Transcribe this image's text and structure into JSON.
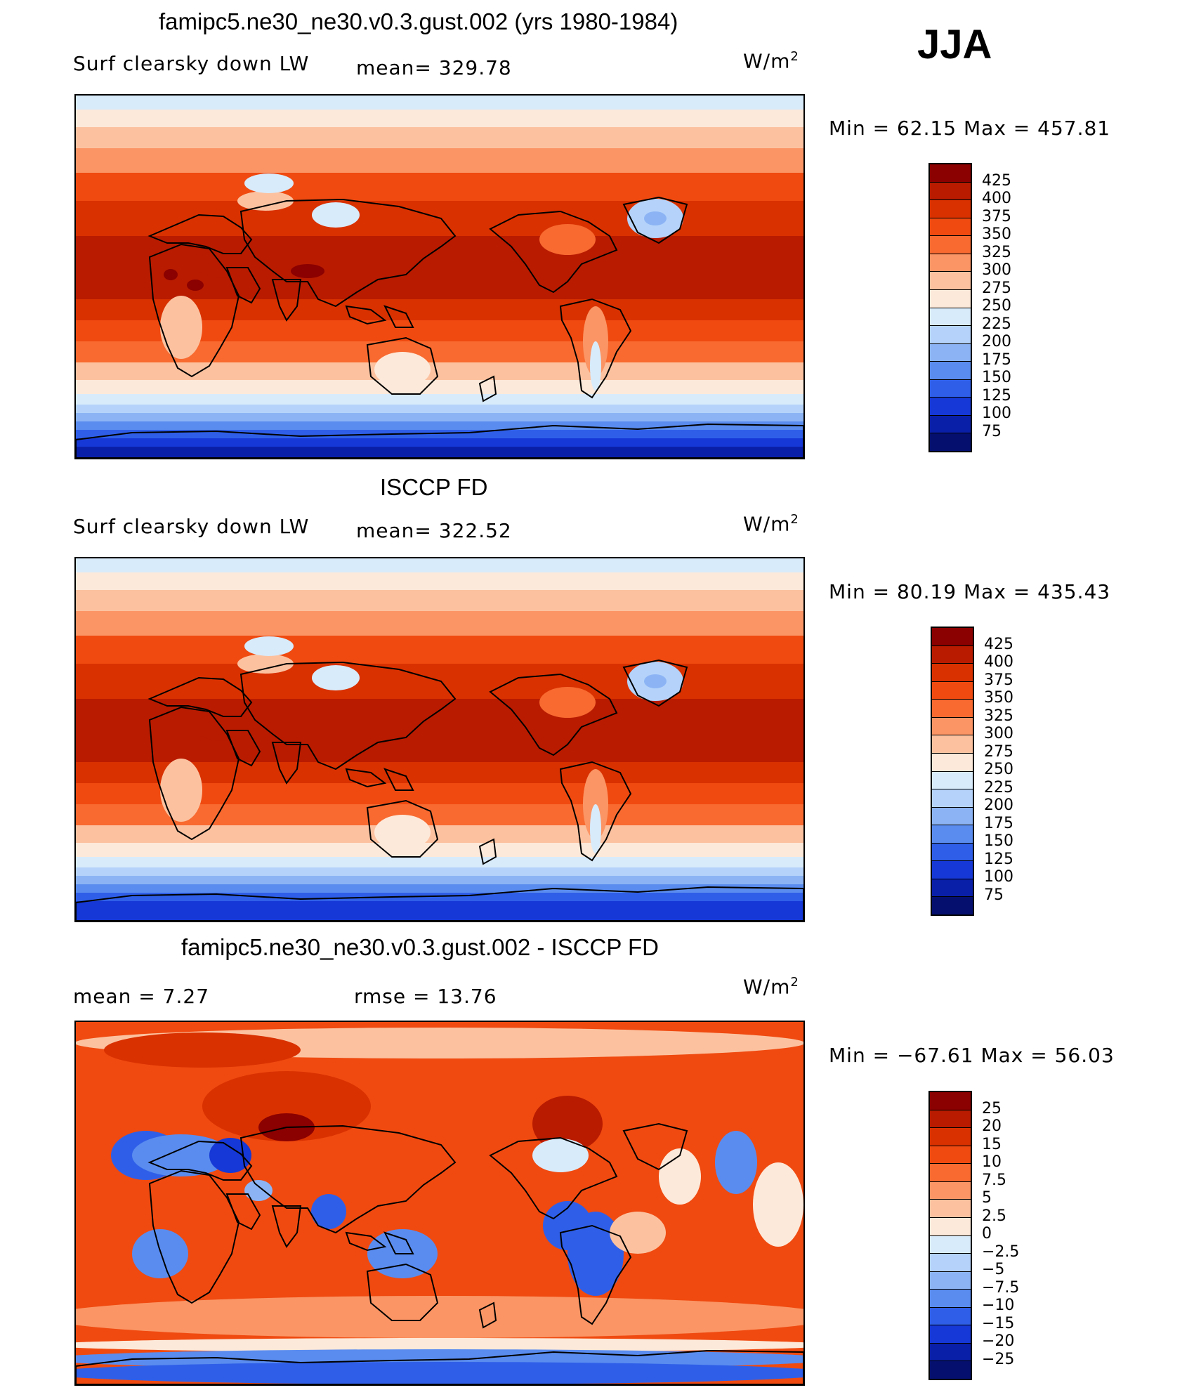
{
  "header": {
    "title": "famipc5.ne30_ne30.v0.3.gust.002 (yrs 1980-1984)",
    "season": "JJA"
  },
  "panels": [
    {
      "id": "model",
      "title": "",
      "left_label": "Surf clearsky down LW",
      "center_label": "mean= 329.78",
      "units": "W/m",
      "units_sup": "2",
      "minmax": "Min =   62.15 Max = 457.81",
      "legend_levels": [
        "425",
        "400",
        "375",
        "350",
        "325",
        "300",
        "275",
        "250",
        "225",
        "200",
        "175",
        "150",
        "125",
        "100",
        "75"
      ],
      "legend_colors": [
        "#8b0000",
        "#b81b00",
        "#d93100",
        "#f04a10",
        "#f86a30",
        "#fb9565",
        "#fcc2a0",
        "#fde9d9",
        "#d8ebfb",
        "#b5d3fa",
        "#8cb4f5",
        "#5a8cef",
        "#2f5fe8",
        "#1538d6",
        "#0a1fa8",
        "#05106e"
      ],
      "palette": "seq"
    },
    {
      "id": "obs",
      "title": "ISCCP FD",
      "left_label": "Surf clearsky down LW",
      "center_label": "mean= 322.52",
      "units": "W/m",
      "units_sup": "2",
      "minmax": "Min =   80.19 Max = 435.43",
      "legend_levels": [
        "425",
        "400",
        "375",
        "350",
        "325",
        "300",
        "275",
        "250",
        "225",
        "200",
        "175",
        "150",
        "125",
        "100",
        "75"
      ],
      "legend_colors": [
        "#8b0000",
        "#b81b00",
        "#d93100",
        "#f04a10",
        "#f86a30",
        "#fb9565",
        "#fcc2a0",
        "#fde9d9",
        "#d8ebfb",
        "#b5d3fa",
        "#8cb4f5",
        "#5a8cef",
        "#2f5fe8",
        "#1538d6",
        "#0a1fa8",
        "#05106e"
      ],
      "palette": "seq"
    },
    {
      "id": "diff",
      "title": "famipc5.ne30_ne30.v0.3.gust.002 - ISCCP FD",
      "left_label": "mean =    7.27",
      "center_label": "rmse =   13.76",
      "units": "W/m",
      "units_sup": "2",
      "minmax": "Min = −67.61 Max =   56.03",
      "legend_levels": [
        "25",
        "20",
        "15",
        "10",
        "7.5",
        "5",
        "2.5",
        "0",
        "−2.5",
        "−5",
        "−7.5",
        "−10",
        "−15",
        "−20",
        "−25"
      ],
      "legend_colors": [
        "#8b0000",
        "#b81b00",
        "#d93100",
        "#f04a10",
        "#f86a30",
        "#fb9565",
        "#fcc2a0",
        "#fde9d9",
        "#d8ebfb",
        "#b5d3fa",
        "#8cb4f5",
        "#5a8cef",
        "#2f5fe8",
        "#1538d6",
        "#0a1fa8",
        "#05106e"
      ],
      "palette": "diff"
    }
  ]
}
